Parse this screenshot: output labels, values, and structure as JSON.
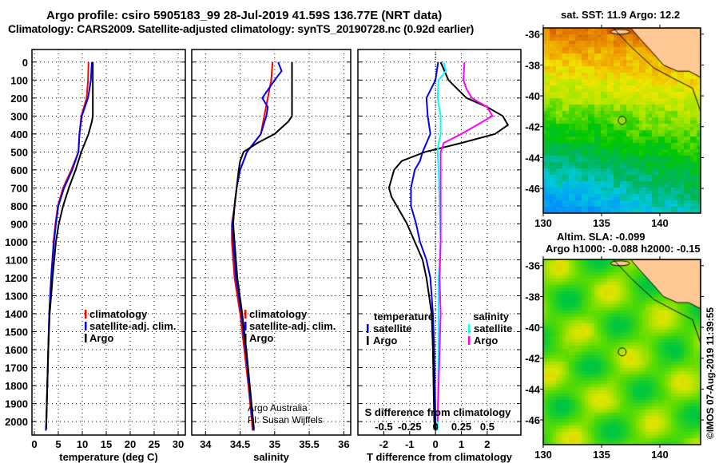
{
  "title_line1": "Argo profile: csiro 5905183_99 28-Jul-2019 41.59S 136.77E (NRT data)",
  "title_line2": "Climatology: CARS2009. Satellite-adjusted climatology: synTS_20190728.nc (0.92d earlier)",
  "credit": "Argo Australia",
  "pi": "PI: Susan Wijffels",
  "copyright": "©IMOS 07-Aug-2019 11:39:55",
  "colors": {
    "argo": "#000000",
    "climatology": "#ff0000",
    "satellite": "#0000ff",
    "sal_sat": "#00ffff",
    "sal_argo": "#ff00ff"
  },
  "chart_data": [
    {
      "type": "line",
      "name": "temperature",
      "xlabel": "temperature (deg C)",
      "ylabel": "depth",
      "xlim": [
        -0.5,
        31.5
      ],
      "ylim": [
        2075,
        -70
      ],
      "xticks": [
        0,
        5,
        10,
        15,
        20,
        25,
        30
      ],
      "yticks": [
        0,
        100,
        200,
        300,
        400,
        500,
        600,
        700,
        800,
        900,
        1000,
        1100,
        1200,
        1300,
        1400,
        1500,
        1600,
        1700,
        1800,
        1900,
        2000
      ],
      "legend": [
        "climatology",
        "satellite-adj. clim.",
        "Argo"
      ],
      "series": [
        {
          "name": "climatology",
          "color": "#ff0000",
          "depth": [
            0,
            100,
            200,
            300,
            400,
            500,
            600,
            700,
            800,
            900,
            1000,
            1200,
            1400,
            1600,
            1800,
            2000,
            2050
          ],
          "values": [
            11.3,
            11.2,
            10.9,
            9.8,
            9.4,
            9.2,
            7.7,
            6.0,
            4.9,
            4.4,
            4.0,
            3.5,
            3.1,
            2.9,
            2.7,
            2.5,
            2.4
          ]
        },
        {
          "name": "satellite-adj. clim.",
          "color": "#0000ff",
          "depth": [
            0,
            100,
            200,
            300,
            400,
            500,
            600,
            700,
            800,
            900,
            1000,
            1200,
            1400,
            1600,
            1800,
            2000,
            2050
          ],
          "values": [
            12.0,
            11.8,
            11.2,
            9.9,
            9.4,
            9.2,
            7.9,
            6.2,
            5.0,
            4.5,
            4.1,
            3.5,
            3.1,
            2.9,
            2.7,
            2.5,
            2.4
          ]
        },
        {
          "name": "Argo",
          "color": "#000000",
          "depth": [
            0,
            100,
            200,
            300,
            330,
            400,
            500,
            600,
            700,
            800,
            900,
            1000,
            1200,
            1400,
            1600,
            1800,
            2000,
            2040
          ],
          "values": [
            12.2,
            12.2,
            12.2,
            12.2,
            12.0,
            11.3,
            9.8,
            8.6,
            7.2,
            6.0,
            5.1,
            4.5,
            3.8,
            3.2,
            2.9,
            2.7,
            2.5,
            2.5
          ]
        }
      ]
    },
    {
      "type": "line",
      "name": "salinity",
      "xlabel": "salinity",
      "xlim": [
        33.8,
        36.1
      ],
      "ylim": [
        2075,
        -70
      ],
      "xticks": [
        34,
        34.5,
        35,
        35.5,
        36
      ],
      "xticklabels": [
        "34",
        "34.5",
        "35",
        "35.5",
        "36"
      ],
      "legend": [
        "climatology",
        "satellite-adj. clim.",
        "Argo"
      ],
      "series": [
        {
          "name": "climatology",
          "color": "#ff0000",
          "depth": [
            0,
            100,
            200,
            300,
            400,
            500,
            600,
            700,
            800,
            900,
            1000,
            1200,
            1400,
            1600,
            1800,
            2000,
            2050
          ],
          "values": [
            34.97,
            34.95,
            34.9,
            34.85,
            34.8,
            34.6,
            34.5,
            34.45,
            34.42,
            34.38,
            34.38,
            34.42,
            34.5,
            34.56,
            34.62,
            34.67,
            34.68
          ]
        },
        {
          "name": "satellite-adj. clim.",
          "color": "#0000ff",
          "depth": [
            0,
            50,
            100,
            200,
            250,
            300,
            400,
            500,
            600,
            700,
            800,
            900,
            1000,
            1200,
            1400,
            1600,
            1800,
            2000,
            2050
          ],
          "values": [
            35.05,
            35.1,
            35.0,
            34.82,
            34.9,
            34.88,
            34.8,
            34.6,
            34.5,
            34.45,
            34.42,
            34.39,
            34.4,
            34.44,
            34.52,
            34.58,
            34.63,
            34.68,
            34.7
          ]
        },
        {
          "name": "Argo",
          "color": "#000000",
          "depth": [
            0,
            100,
            200,
            300,
            330,
            400,
            450,
            500,
            550,
            600,
            700,
            800,
            900,
            1000,
            1200,
            1400,
            1600,
            1800,
            2000,
            2040
          ],
          "values": [
            35.25,
            35.25,
            35.25,
            35.25,
            35.2,
            35.0,
            34.75,
            34.55,
            34.5,
            34.48,
            34.45,
            34.42,
            34.4,
            34.42,
            34.46,
            34.53,
            34.59,
            34.64,
            34.69,
            34.7
          ]
        }
      ]
    },
    {
      "type": "line",
      "name": "difference",
      "xlabel": "T difference from climatology",
      "x2label": "S difference from climatology",
      "xlim": [
        -3,
        3.3
      ],
      "x2lim": [
        -0.75,
        0.825
      ],
      "ylim": [
        2075,
        -70
      ],
      "xticks": [
        -2,
        -1,
        0,
        1,
        2
      ],
      "x2ticks": [
        -0.5,
        -0.25,
        0,
        0.25,
        0.5
      ],
      "x2ticklabels": [
        "-0.5",
        "-0.25",
        "0",
        "0.25",
        "0.5"
      ],
      "legend_temperature": {
        "title": "temperature",
        "items": [
          "satellite",
          "Argo"
        ]
      },
      "legend_salinity": {
        "title": "salinity",
        "items": [
          "satellite",
          "Argo"
        ]
      },
      "series": [
        {
          "name": "T satellite",
          "axis": "T",
          "color": "#0000ff",
          "depth": [
            0,
            100,
            200,
            300,
            400,
            500,
            550,
            600,
            700,
            800,
            900,
            1000,
            1100,
            1200,
            1400,
            1600,
            2000,
            2050
          ],
          "values": [
            0.1,
            0.0,
            -0.35,
            -0.3,
            -0.2,
            -0.5,
            -0.6,
            -0.8,
            -0.95,
            -0.95,
            -0.75,
            -0.6,
            -0.35,
            -0.2,
            -0.1,
            -0.05,
            0.0,
            0.0
          ]
        },
        {
          "name": "T Argo",
          "axis": "T",
          "color": "#000000",
          "depth": [
            0,
            100,
            200,
            250,
            300,
            350,
            400,
            450,
            500,
            550,
            600,
            700,
            750,
            800,
            900,
            1000,
            1100,
            1200,
            1400,
            1600,
            2000,
            2040
          ],
          "values": [
            0.2,
            0.5,
            1.2,
            2.0,
            2.6,
            2.8,
            2.3,
            1.0,
            -0.4,
            -1.3,
            -1.6,
            -1.8,
            -1.7,
            -1.5,
            -1.1,
            -0.8,
            -0.5,
            -0.35,
            -0.15,
            -0.1,
            -0.05,
            0.0
          ]
        },
        {
          "name": "S satellite",
          "axis": "S",
          "color": "#00ffff",
          "depth": [
            0,
            50,
            100,
            200,
            300,
            400,
            450,
            500,
            600,
            800,
            1000,
            1200,
            1400,
            1600,
            2000,
            2050
          ],
          "values": [
            0.08,
            0.1,
            0.03,
            0.02,
            0.05,
            0.05,
            0.03,
            0.02,
            0.03,
            0.04,
            0.05,
            0.03,
            0.03,
            0.03,
            0.02,
            0.02
          ]
        },
        {
          "name": "S Argo",
          "axis": "S",
          "color": "#ff00ff",
          "depth": [
            0,
            100,
            150,
            200,
            250,
            300,
            350,
            400,
            450,
            500,
            600,
            800,
            1000,
            1200,
            1400,
            1600,
            1800,
            2000
          ],
          "values": [
            0.28,
            0.27,
            0.3,
            0.35,
            0.5,
            0.55,
            0.4,
            0.25,
            0.08,
            0.05,
            0.05,
            0.05,
            0.05,
            0.04,
            0.05,
            0.04,
            0.03,
            0.02
          ]
        }
      ]
    },
    {
      "type": "heatmap",
      "name": "sst-map",
      "title": "sat. SST: 11.9 Argo: 12.2",
      "xlim": [
        130,
        143.5
      ],
      "ylim": [
        -35.6,
        -47.6
      ],
      "xticks": [
        130,
        135,
        140
      ],
      "yticks": [
        -36,
        -38,
        -40,
        -42,
        -44,
        -46
      ],
      "marker": {
        "lon": 136.77,
        "lat": -41.59
      }
    },
    {
      "type": "heatmap",
      "name": "sla-map",
      "title": "Altim. SLA: -0.099",
      "subtitle": "Argo h1000: -0.088 h2000: -0.15",
      "xlim": [
        130,
        143.5
      ],
      "ylim": [
        -35.6,
        -47.6
      ],
      "xticks": [
        130,
        135,
        140
      ],
      "yticks": [
        -36,
        -38,
        -40,
        -42,
        -44,
        -46
      ],
      "marker": {
        "lon": 136.77,
        "lat": -41.59
      }
    }
  ]
}
